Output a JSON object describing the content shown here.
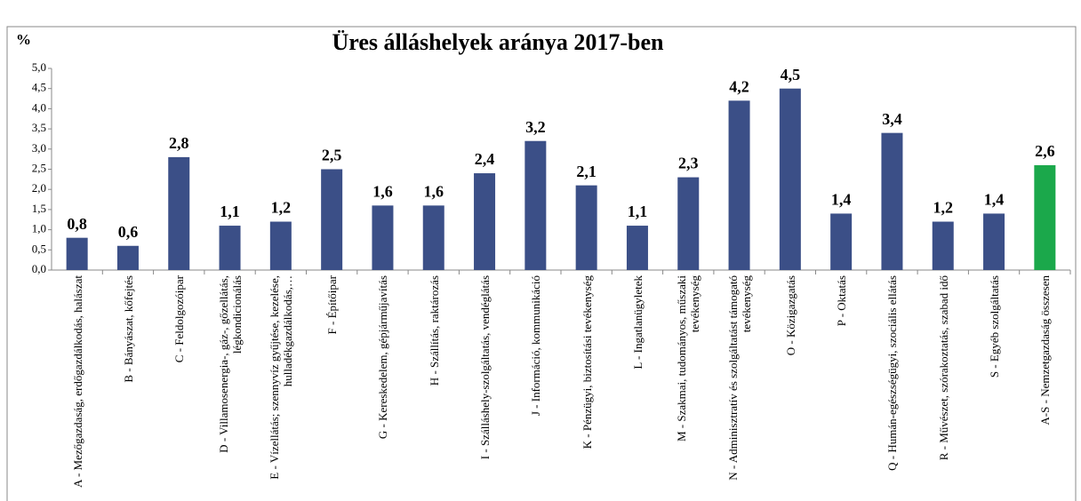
{
  "chart_data": {
    "type": "bar",
    "title": "Üres álláshelyek aránya 2017-ben",
    "y_label": "%",
    "categories": [
      "A - Mezőgazdaság, erdőgazdálkodás, halászat",
      "B - Bányászat, kőfejtés",
      "C - Feldolgozóipar",
      "D - Villamosenergia-, gáz-, gőzellátás, légkondicionálás",
      "E - Vízellátás; szennyvíz gyűjtése, kezelése, hulladékgazdálkodás,…",
      "F - Építőipar",
      "G - Kereskedelem, gépjárműjavítás",
      "H - Szállítás, raktározás",
      "I - Szálláshely-szolgáltatás, vendéglátás",
      "J - Információ, kommunikáció",
      "K - Pénzügyi, biztosítási tevékenység",
      "L - Ingatlanügyletek",
      "M - Szakmai, tudományos, műszaki tevékenység",
      "N - Adminisztratív és szolgáltatást támogató tevékenység",
      "O - Közigazgatás",
      "P - Oktatás",
      "Q - Humán-egészségügyi, szociális ellátás",
      "R - Művészet, szórakoztatás, szabad idő",
      "S - Egyéb szolgáltatás",
      "A-S - Nemzetgazdaság összesen"
    ],
    "values": [
      0.8,
      0.6,
      2.8,
      1.1,
      1.2,
      2.5,
      1.6,
      1.6,
      2.4,
      3.2,
      2.1,
      1.1,
      2.3,
      4.2,
      4.5,
      1.4,
      3.4,
      1.2,
      1.4,
      2.6
    ],
    "value_labels": [
      "0,8",
      "0,6",
      "2,8",
      "1,1",
      "1,2",
      "2,5",
      "1,6",
      "1,6",
      "2,4",
      "3,2",
      "2,1",
      "1,1",
      "2,3",
      "4,2",
      "4,5",
      "1,4",
      "3,4",
      "1,2",
      "1,4",
      "2,6"
    ],
    "colors": [
      "#3b4f87",
      "#3b4f87",
      "#3b4f87",
      "#3b4f87",
      "#3b4f87",
      "#3b4f87",
      "#3b4f87",
      "#3b4f87",
      "#3b4f87",
      "#3b4f87",
      "#3b4f87",
      "#3b4f87",
      "#3b4f87",
      "#3b4f87",
      "#3b4f87",
      "#3b4f87",
      "#3b4f87",
      "#3b4f87",
      "#3b4f87",
      "#1ba84b"
    ],
    "ylim": [
      0,
      5
    ],
    "yticks": [
      {
        "value": 0,
        "label": "0,0"
      },
      {
        "value": 0.5,
        "label": "0,5"
      },
      {
        "value": 1,
        "label": "1,0"
      },
      {
        "value": 1.5,
        "label": "1,5"
      },
      {
        "value": 2,
        "label": "2,0"
      },
      {
        "value": 2.5,
        "label": "2,5"
      },
      {
        "value": 3,
        "label": "3,0"
      },
      {
        "value": 3.5,
        "label": "3,5"
      },
      {
        "value": 4,
        "label": "4,0"
      },
      {
        "value": 4.5,
        "label": "4,5"
      },
      {
        "value": 5,
        "label": "5,0"
      }
    ],
    "grid": false
  }
}
